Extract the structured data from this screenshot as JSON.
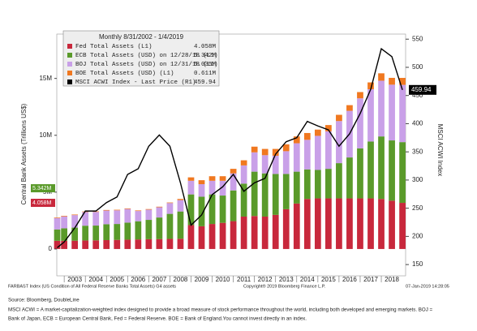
{
  "chart_data": {
    "type": "bar",
    "stacked": true,
    "legend_title": "Monthly 8/31/2002 - 1/4/2019",
    "ylabel": "Central Bank Assets (Trillions US$)",
    "y2label": "MSCI ACWI Index",
    "x": [
      2002.67,
      2003.0,
      2003.5,
      2004.0,
      2004.5,
      2005.0,
      2005.5,
      2006.0,
      2006.5,
      2007.0,
      2007.5,
      2008.0,
      2008.5,
      2009.0,
      2009.5,
      2010.0,
      2010.5,
      2011.0,
      2011.5,
      2012.0,
      2012.5,
      2013.0,
      2013.5,
      2014.0,
      2014.5,
      2015.0,
      2015.5,
      2016.0,
      2016.5,
      2017.0,
      2017.5,
      2018.0,
      2018.5,
      2019.0
    ],
    "xlim": [
      2002.65,
      2019.15
    ],
    "year_labels": [
      2003,
      2004,
      2005,
      2006,
      2007,
      2008,
      2009,
      2010,
      2011,
      2012,
      2013,
      2014,
      2015,
      2016,
      2017,
      2018
    ],
    "ylim": [
      -2.36,
      18.9
    ],
    "yticks": [
      0,
      {
        "value": 5,
        "label": "5M"
      },
      {
        "value": 10,
        "label": "10M"
      },
      {
        "value": 15,
        "label": "15M"
      }
    ],
    "y2lim": [
      130,
      559
    ],
    "y2ticks": [
      150,
      200,
      250,
      300,
      350,
      400,
      450,
      500,
      550
    ],
    "series": [
      {
        "name": "Fed Total Assets (L1)",
        "legend_value": "4.058M",
        "color": "#c8283c",
        "values": [
          0.72,
          0.72,
          0.73,
          0.75,
          0.76,
          0.78,
          0.8,
          0.82,
          0.84,
          0.86,
          0.87,
          0.89,
          0.9,
          2.1,
          2.0,
          2.2,
          2.3,
          2.45,
          2.85,
          2.9,
          2.85,
          3.0,
          3.5,
          4.0,
          4.4,
          4.45,
          4.45,
          4.45,
          4.45,
          4.45,
          4.45,
          4.4,
          4.25,
          4.058
        ]
      },
      {
        "name": "ECB Total Assets (USD) on 12/28/18 (L1)",
        "legend_value": "5.342M",
        "color": "#5a9a2a",
        "values": [
          1.0,
          1.1,
          1.15,
          1.3,
          1.3,
          1.4,
          1.4,
          1.5,
          1.6,
          1.7,
          1.9,
          2.2,
          2.4,
          2.7,
          2.6,
          2.6,
          2.4,
          2.7,
          2.9,
          3.9,
          3.8,
          3.6,
          3.1,
          2.8,
          2.6,
          2.5,
          2.6,
          3.1,
          3.6,
          4.4,
          5.0,
          5.5,
          5.3,
          5.342
        ]
      },
      {
        "name": "BOJ Total Assets (USD) on 12/31/18 (L1)",
        "legend_value": "5.035M",
        "color": "#c9a0e8",
        "values": [
          1.0,
          1.05,
          1.1,
          1.2,
          1.2,
          1.2,
          1.2,
          1.2,
          0.9,
          0.9,
          0.9,
          0.95,
          1.0,
          1.2,
          1.1,
          1.2,
          1.3,
          1.5,
          1.6,
          1.7,
          1.6,
          1.6,
          2.0,
          2.5,
          2.6,
          3.0,
          3.3,
          3.7,
          4.1,
          4.4,
          4.6,
          4.9,
          4.9,
          5.035
        ]
      },
      {
        "name": "BOE Total Assets (USD) (L1)",
        "legend_value": "0.611M",
        "color": "#f07820",
        "values": [
          0.05,
          0.05,
          0.05,
          0.05,
          0.05,
          0.05,
          0.05,
          0.05,
          0.05,
          0.05,
          0.05,
          0.05,
          0.1,
          0.3,
          0.35,
          0.4,
          0.4,
          0.4,
          0.45,
          0.5,
          0.55,
          0.6,
          0.6,
          0.6,
          0.6,
          0.55,
          0.55,
          0.55,
          0.5,
          0.55,
          0.6,
          0.65,
          0.6,
          0.611
        ]
      },
      {
        "name": "MSCI ACWI Index - Last Price (R1)",
        "legend_value": "459.94",
        "color": "#000000",
        "axis": "y2",
        "values": [
          180,
          190,
          215,
          245,
          245,
          260,
          270,
          310,
          320,
          360,
          380,
          360,
          295,
          220,
          238,
          274,
          288,
          310,
          280,
          295,
          303,
          346,
          368,
          375,
          404,
          396,
          389,
          360,
          382,
          418,
          461,
          533,
          519,
          459.94
        ]
      }
    ]
  },
  "footer": {
    "index_note": "FARBAST Index (US Condition of All Federal Reserve Banks Total Assets) G4 assets",
    "copyright": "Copyright® 2019 Bloomberg Finance L.P.",
    "timestamp": "07-Jan-2019 14:28:05",
    "source": "Source:  Bloomberg, DoubleLine",
    "note_1": "MSCI ACWI = A market-capitalization-weighted index designed to provide a broad measure of stock performance throughout the world, including both developed and emerging markets. BOJ =",
    "note_2": "Bank of Japan, ECB = European Central Bank, Fed = Federal Reserve. BOE = Bank of England.You cannot invest directly in an index."
  }
}
